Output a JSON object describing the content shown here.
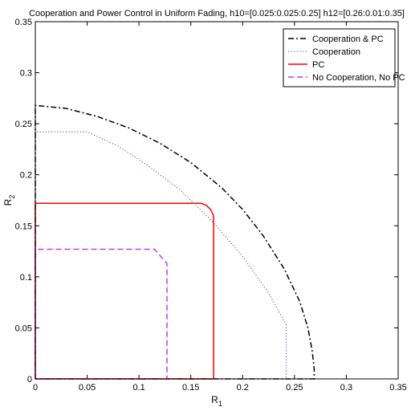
{
  "chart_data": {
    "type": "line",
    "title": "Cooperation and Power Control in Uniform Fading, h10=[0.025:0.025:0.25] h12=[0.26:0.01:0.35]",
    "xlabel": "R",
    "xlabel_sub": "1",
    "ylabel": "R",
    "ylabel_sub": "2",
    "xlim": [
      0,
      0.35
    ],
    "ylim": [
      0,
      0.35
    ],
    "xticks": [
      0,
      0.05,
      0.1,
      0.15,
      0.2,
      0.25,
      0.3,
      0.35
    ],
    "yticks": [
      0,
      0.05,
      0.1,
      0.15,
      0.2,
      0.25,
      0.3,
      0.35
    ],
    "xtick_labels": [
      "0",
      "0.05",
      "0.1",
      "0.15",
      "0.2",
      "0.25",
      "0.3",
      "0.35"
    ],
    "ytick_labels": [
      "0",
      "0.05",
      "0.1",
      "0.15",
      "0.2",
      "0.25",
      "0.3",
      "0.35"
    ],
    "grid": false,
    "legend_position": "top-right",
    "series": [
      {
        "name": "Cooperation & PC",
        "color": "#000000",
        "style": "dashdot",
        "points": [
          [
            0,
            0
          ],
          [
            0,
            0.268
          ],
          [
            0.03,
            0.265
          ],
          [
            0.06,
            0.257
          ],
          [
            0.09,
            0.246
          ],
          [
            0.12,
            0.231
          ],
          [
            0.15,
            0.212
          ],
          [
            0.18,
            0.187
          ],
          [
            0.2,
            0.166
          ],
          [
            0.22,
            0.14
          ],
          [
            0.24,
            0.108
          ],
          [
            0.255,
            0.076
          ],
          [
            0.263,
            0.05
          ],
          [
            0.267,
            0.028
          ],
          [
            0.269,
            0.01
          ],
          [
            0.269,
            0
          ],
          [
            0,
            0
          ]
        ]
      },
      {
        "name": "Cooperation",
        "color": "#4444cc",
        "style": "dotted",
        "points": [
          [
            0,
            0
          ],
          [
            0,
            0.242
          ],
          [
            0.05,
            0.242
          ],
          [
            0.08,
            0.228
          ],
          [
            0.11,
            0.208
          ],
          [
            0.14,
            0.185
          ],
          [
            0.17,
            0.155
          ],
          [
            0.2,
            0.12
          ],
          [
            0.225,
            0.084
          ],
          [
            0.242,
            0.053
          ],
          [
            0.242,
            0
          ],
          [
            0,
            0
          ]
        ]
      },
      {
        "name": "PC",
        "color": "#ff0000",
        "style": "solid",
        "points": [
          [
            0,
            0
          ],
          [
            0,
            0.172
          ],
          [
            0.16,
            0.172
          ],
          [
            0.165,
            0.17
          ],
          [
            0.169,
            0.166
          ],
          [
            0.172,
            0.16
          ],
          [
            0.172,
            0
          ],
          [
            0,
            0
          ]
        ]
      },
      {
        "name": "No Cooperation, No PC",
        "color": "#cc33ff",
        "style": "dashed",
        "points": [
          [
            0,
            0
          ],
          [
            0,
            0.127
          ],
          [
            0.115,
            0.127
          ],
          [
            0.127,
            0.113
          ],
          [
            0.127,
            0
          ],
          [
            0,
            0
          ]
        ]
      }
    ]
  }
}
